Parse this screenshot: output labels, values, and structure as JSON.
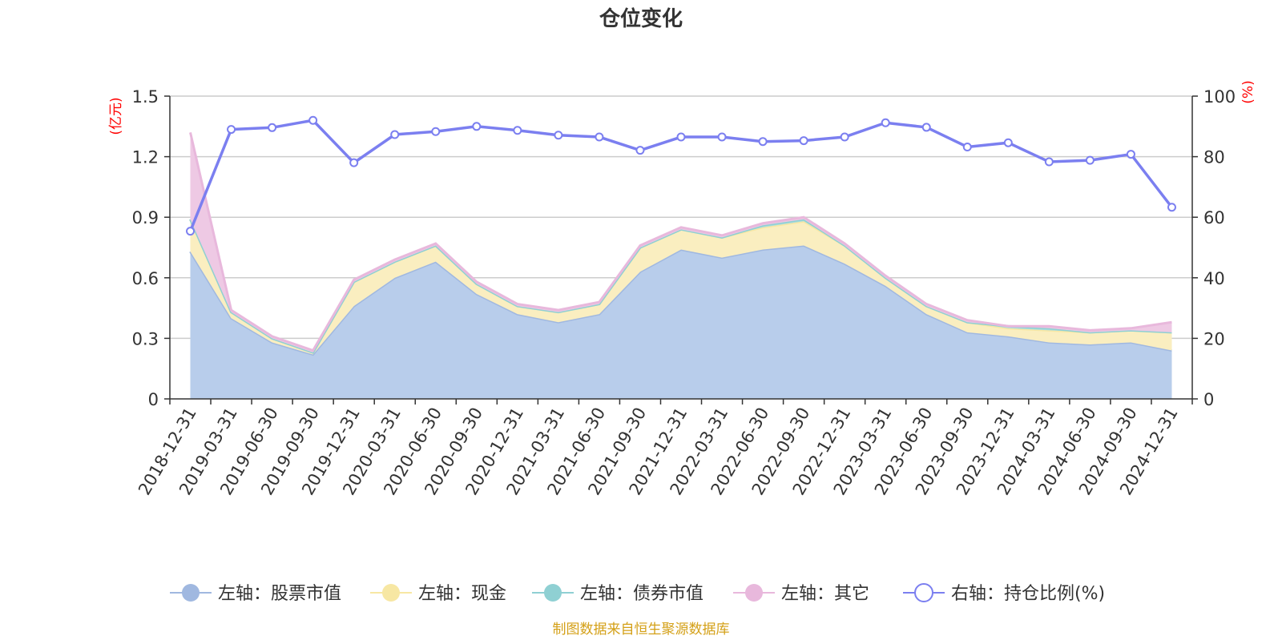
{
  "chart_data": {
    "type": "area",
    "title": "仓位变化",
    "left_axis_unit": "(亿元)",
    "right_axis_unit": "(%)",
    "categories": [
      "2018-12-31",
      "2019-03-31",
      "2019-06-30",
      "2019-09-30",
      "2019-12-31",
      "2020-03-31",
      "2020-06-30",
      "2020-09-30",
      "2020-12-31",
      "2021-03-31",
      "2021-06-30",
      "2021-09-30",
      "2021-12-31",
      "2022-03-31",
      "2022-06-30",
      "2022-09-30",
      "2022-12-31",
      "2023-03-31",
      "2023-06-30",
      "2023-09-30",
      "2023-12-31",
      "2024-03-31",
      "2024-06-30",
      "2024-09-30",
      "2024-12-31"
    ],
    "ylim_left": [
      0,
      1.5
    ],
    "yticks_left": [
      "0",
      "0.3",
      "0.6",
      "0.9",
      "1.2",
      "1.5"
    ],
    "ylim_right": [
      0,
      100
    ],
    "yticks_right": [
      "0",
      "20",
      "40",
      "60",
      "80",
      "100"
    ],
    "grid": true,
    "legend_position": "bottom",
    "series": [
      {
        "name": "左轴：股票市值",
        "axis": "left",
        "stack": true,
        "color": "#a0b8e0",
        "fill": "#b8cdeb",
        "values": [
          0.73,
          0.4,
          0.28,
          0.22,
          0.46,
          0.6,
          0.68,
          0.52,
          0.42,
          0.38,
          0.42,
          0.63,
          0.74,
          0.7,
          0.74,
          0.76,
          0.67,
          0.56,
          0.42,
          0.33,
          0.31,
          0.28,
          0.27,
          0.28,
          0.24
        ]
      },
      {
        "name": "左轴：现金",
        "axis": "left",
        "stack": true,
        "color": "#f7e7a3",
        "fill": "#faeec0",
        "values": [
          0.16,
          0.03,
          0.02,
          0.01,
          0.12,
          0.08,
          0.08,
          0.05,
          0.04,
          0.05,
          0.05,
          0.12,
          0.1,
          0.1,
          0.11,
          0.12,
          0.09,
          0.04,
          0.04,
          0.05,
          0.04,
          0.06,
          0.06,
          0.06,
          0.09
        ]
      },
      {
        "name": "左轴：债券市值",
        "axis": "left",
        "stack": true,
        "color": "#8fd0d3",
        "fill": "#a9dcdf",
        "values": [
          0,
          0,
          0,
          0,
          0,
          0,
          0,
          0,
          0,
          0,
          0,
          0,
          0,
          0,
          0.01,
          0.01,
          0,
          0,
          0,
          0,
          0.01,
          0.01,
          0,
          0,
          0
        ]
      },
      {
        "name": "左轴：其它",
        "axis": "left",
        "stack": true,
        "color": "#e8b8dc",
        "fill": "#eec9e4",
        "values": [
          0.43,
          0.01,
          0.01,
          0.01,
          0.01,
          0.01,
          0.01,
          0.01,
          0.01,
          0.01,
          0.01,
          0.01,
          0.01,
          0.01,
          0.01,
          0.01,
          0.01,
          0.01,
          0.01,
          0.01,
          0,
          0.01,
          0.01,
          0.01,
          0.05
        ]
      },
      {
        "name": "右轴：持仓比例(%)",
        "axis": "right",
        "type": "line",
        "color": "#7b7ff0",
        "values": [
          55.4,
          89.0,
          89.6,
          92.0,
          78.0,
          87.3,
          88.3,
          90.0,
          88.7,
          87.1,
          86.5,
          82.1,
          86.5,
          86.5,
          85.0,
          85.3,
          86.5,
          91.2,
          89.7,
          83.2,
          84.6,
          78.3,
          78.8,
          80.8,
          63.3
        ]
      }
    ]
  },
  "footer": {
    "source_text": "制图数据来自恒生聚源数据库",
    "source_color": "#d4a017"
  }
}
